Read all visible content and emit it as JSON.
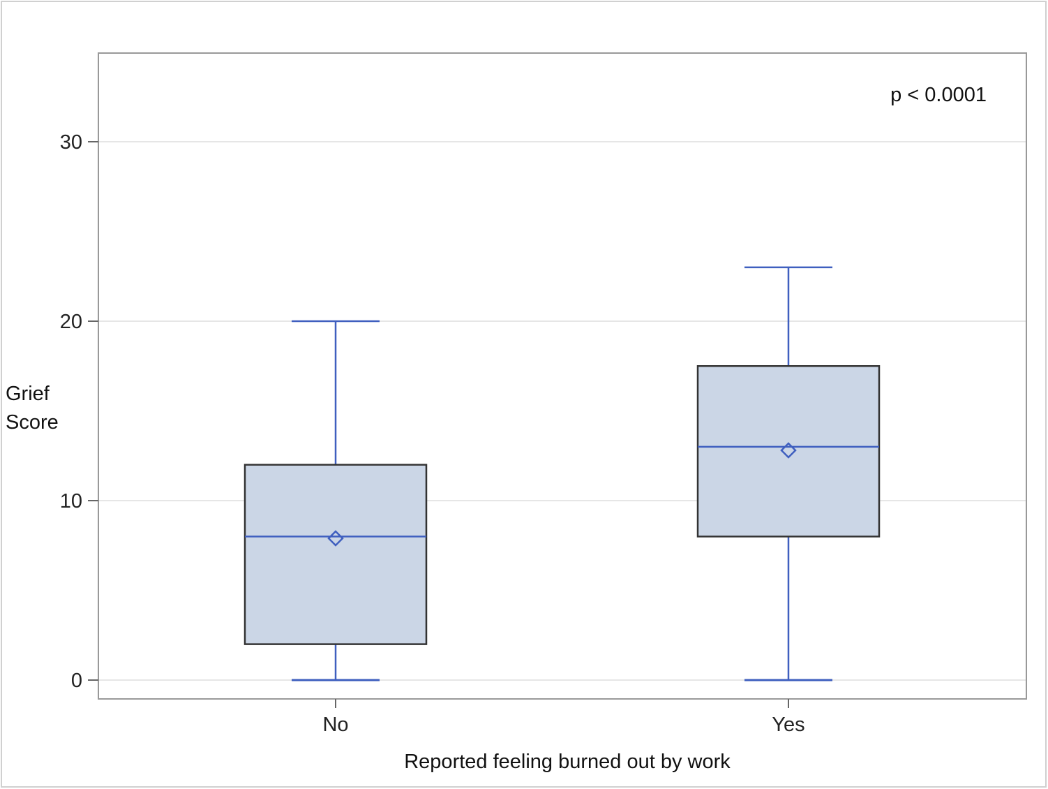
{
  "chart_data": {
    "type": "box",
    "title": "",
    "xlabel": "Reported feeling burned out by work",
    "ylabel_lines": [
      "Grief",
      "Score"
    ],
    "annotation": "p < 0.0001",
    "annotation_position": "top-right",
    "ylim": [
      -1.1,
      34.9
    ],
    "yticks": [
      0,
      10,
      20,
      30
    ],
    "grid": "horizontal",
    "legend": "none",
    "categories": [
      "No",
      "Yes"
    ],
    "boxes": [
      {
        "category": "No",
        "whisker_low": 0,
        "q1": 2,
        "median": 8,
        "mean": 7.9,
        "q3": 12,
        "whisker_high": 20
      },
      {
        "category": "Yes",
        "whisker_low": 0,
        "q1": 8,
        "median": 13,
        "mean": 12.8,
        "q3": 17.5,
        "whisker_high": 23
      }
    ],
    "colors": {
      "box_fill": "#cbd6e6",
      "box_edge": "#333333",
      "whisker": "#3f5fbf",
      "median": "#3f5fbf",
      "mean_marker": "#3f5fbf",
      "grid": "#e6e6e6",
      "frame": "#999999"
    }
  }
}
